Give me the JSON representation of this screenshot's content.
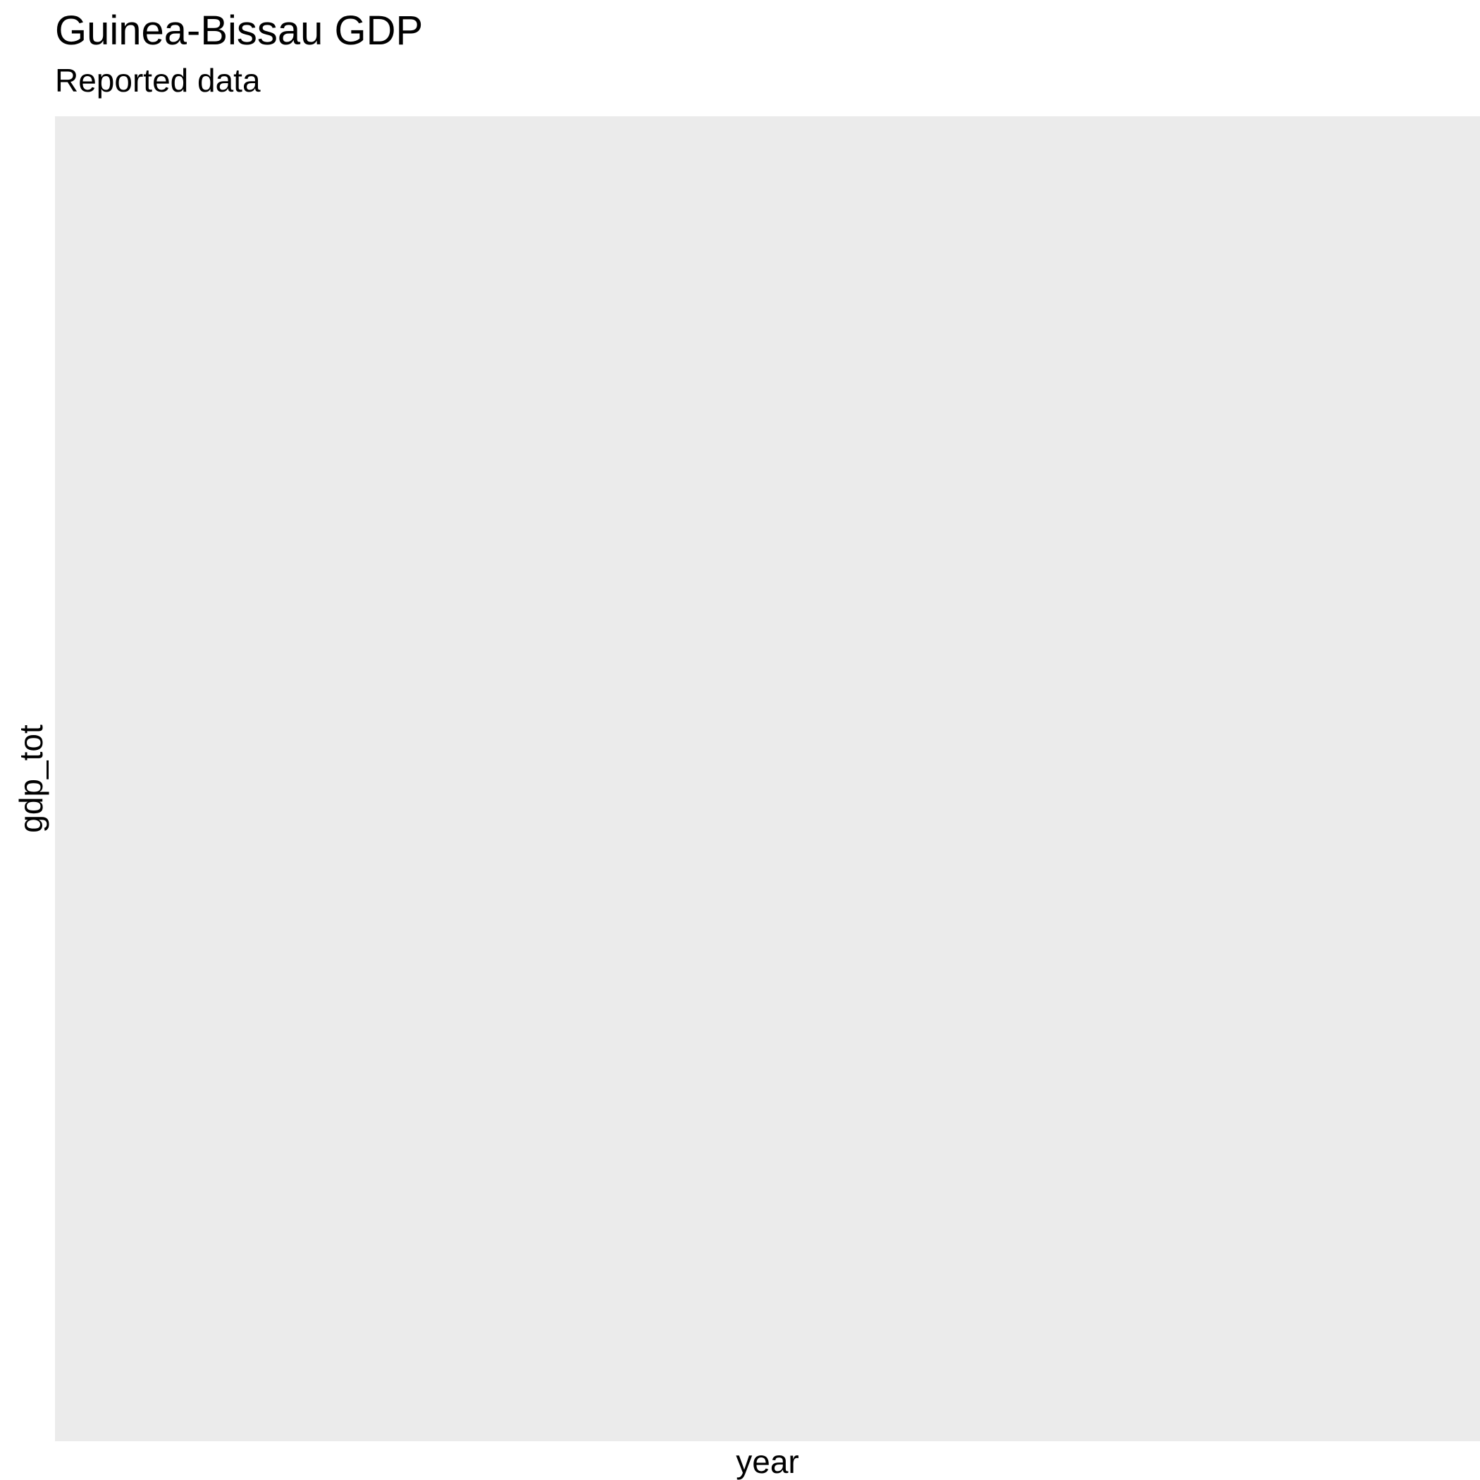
{
  "chart_data": {
    "type": "line",
    "title": "Guinea-Bissau GDP",
    "subtitle": "Reported data",
    "xlabel": "year",
    "ylabel": "gdp_tot",
    "x": [],
    "series": [],
    "grid": false,
    "legend": "none",
    "colors": {
      "panel_background": "#ebebeb",
      "page_background": "#ffffff",
      "text": "#000000"
    }
  }
}
